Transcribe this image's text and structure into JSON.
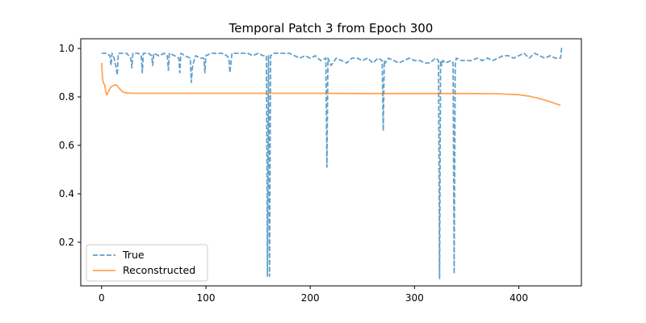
{
  "chart_data": {
    "type": "line",
    "title": "Temporal Patch 3 from Epoch 300",
    "xlabel": "",
    "ylabel": "",
    "xlim": [
      -20,
      460
    ],
    "ylim": [
      0.02,
      1.04
    ],
    "xticks": [
      0,
      100,
      200,
      300,
      400
    ],
    "yticks": [
      0.2,
      0.4,
      0.6,
      0.8,
      1.0
    ],
    "xtick_labels": [
      "0",
      "100",
      "200",
      "300",
      "400"
    ],
    "ytick_labels": [
      "0.2",
      "0.4",
      "0.6",
      "0.8",
      "1.0"
    ],
    "grid": false,
    "legend_position": "lower-left",
    "colors": {
      "true": "#1f77b4",
      "reconstructed": "#ff7f0e"
    },
    "series": [
      {
        "name": "True",
        "style": "dashed",
        "x": [
          0,
          5,
          8,
          9,
          10,
          12,
          14,
          15,
          16,
          20,
          24,
          28,
          29,
          30,
          35,
          38,
          39,
          40,
          45,
          48,
          49,
          50,
          55,
          60,
          63,
          64,
          65,
          70,
          74,
          75,
          76,
          80,
          85,
          86,
          87,
          88,
          90,
          95,
          98,
          99,
          100,
          105,
          110,
          115,
          120,
          122,
          123,
          124,
          125,
          130,
          135,
          140,
          145,
          150,
          155,
          158,
          159,
          160,
          161,
          162,
          165,
          170,
          175,
          180,
          185,
          190,
          195,
          200,
          205,
          210,
          215,
          216,
          217,
          218,
          220,
          225,
          230,
          235,
          240,
          245,
          250,
          255,
          260,
          265,
          269,
          270,
          271,
          272,
          275,
          280,
          285,
          290,
          295,
          300,
          305,
          310,
          315,
          320,
          323,
          324,
          325,
          326,
          327,
          330,
          335,
          337,
          338,
          339,
          340,
          345,
          350,
          355,
          360,
          365,
          370,
          375,
          380,
          385,
          390,
          395,
          400,
          405,
          410,
          415,
          420,
          425,
          430,
          435,
          440,
          441,
          442
        ],
        "y": [
          0.98,
          0.98,
          0.97,
          0.93,
          0.98,
          0.96,
          0.92,
          0.89,
          0.98,
          0.98,
          0.98,
          0.96,
          0.92,
          0.98,
          0.98,
          0.97,
          0.9,
          0.98,
          0.98,
          0.97,
          0.93,
          0.98,
          0.97,
          0.98,
          0.97,
          0.91,
          0.98,
          0.97,
          0.96,
          0.9,
          0.98,
          0.97,
          0.96,
          0.86,
          0.92,
          0.94,
          0.97,
          0.96,
          0.96,
          0.9,
          0.97,
          0.98,
          0.98,
          0.98,
          0.97,
          0.96,
          0.9,
          0.94,
          0.98,
          0.98,
          0.98,
          0.98,
          0.97,
          0.98,
          0.97,
          0.97,
          0.06,
          0.97,
          0.06,
          0.97,
          0.98,
          0.98,
          0.98,
          0.98,
          0.97,
          0.96,
          0.97,
          0.96,
          0.97,
          0.95,
          0.96,
          0.51,
          0.96,
          0.95,
          0.93,
          0.96,
          0.95,
          0.94,
          0.96,
          0.96,
          0.95,
          0.96,
          0.94,
          0.96,
          0.95,
          0.66,
          0.95,
          0.94,
          0.96,
          0.95,
          0.94,
          0.95,
          0.96,
          0.95,
          0.95,
          0.94,
          0.94,
          0.96,
          0.95,
          0.05,
          0.95,
          0.93,
          0.95,
          0.94,
          0.95,
          0.94,
          0.07,
          0.93,
          0.96,
          0.95,
          0.95,
          0.95,
          0.96,
          0.95,
          0.96,
          0.95,
          0.96,
          0.97,
          0.97,
          0.96,
          0.97,
          0.98,
          0.96,
          0.98,
          0.97,
          0.96,
          0.97,
          0.96,
          0.96,
          1.0,
          1.0
        ]
      },
      {
        "name": "Reconstructed",
        "style": "solid",
        "x": [
          0,
          1,
          2,
          3,
          4,
          5,
          6,
          8,
          10,
          12,
          14,
          16,
          18,
          20,
          22,
          25,
          30,
          40,
          60,
          100,
          150,
          200,
          250,
          300,
          350,
          380,
          400,
          410,
          420,
          430,
          440
        ],
        "y": [
          0.94,
          0.87,
          0.855,
          0.85,
          0.82,
          0.808,
          0.818,
          0.835,
          0.845,
          0.848,
          0.85,
          0.84,
          0.83,
          0.822,
          0.818,
          0.816,
          0.815,
          0.815,
          0.815,
          0.815,
          0.815,
          0.815,
          0.814,
          0.814,
          0.814,
          0.813,
          0.809,
          0.803,
          0.793,
          0.78,
          0.765
        ]
      }
    ]
  }
}
